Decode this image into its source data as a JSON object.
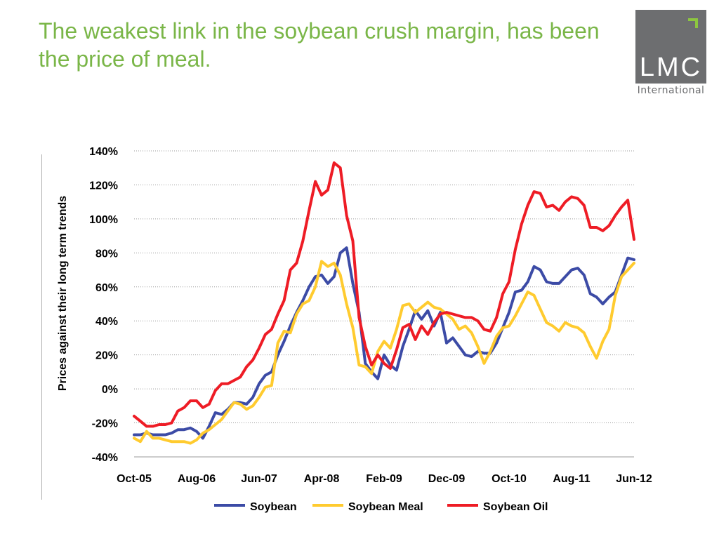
{
  "slide": {
    "title": "The weakest link in the soybean crush margin, has been the price of meal."
  },
  "logo": {
    "main": "LMC",
    "sub": "International"
  },
  "chart_data": {
    "type": "line",
    "title": "",
    "xlabel": "",
    "ylabel": "Prices against their long term trends",
    "ylim": [
      -40,
      140
    ],
    "yticks": [
      -40,
      -20,
      0,
      20,
      40,
      60,
      80,
      100,
      120,
      140
    ],
    "ytick_labels": [
      "-40%",
      "-20%",
      "0%",
      "20%",
      "40%",
      "60%",
      "80%",
      "100%",
      "120%",
      "140%"
    ],
    "xlim": [
      0,
      80
    ],
    "xticks": [
      0,
      10,
      20,
      30,
      40,
      50,
      60,
      70,
      80
    ],
    "xtick_labels": [
      "Oct-05",
      "Aug-06",
      "Jun-07",
      "Apr-08",
      "Feb-09",
      "Dec-09",
      "Oct-10",
      "Aug-11",
      "Jun-12"
    ],
    "grid": true,
    "legend_position": "bottom",
    "series": [
      {
        "name": "Soybean",
        "color": "#3c4ba6",
        "values": [
          -27,
          -27,
          -26,
          -27,
          -27,
          -27,
          -26,
          -24,
          -24,
          -23,
          -25,
          -29,
          -22,
          -14,
          -15,
          -12,
          -8,
          -8,
          -9,
          -5,
          3,
          8,
          10,
          20,
          28,
          37,
          45,
          52,
          60,
          66,
          67,
          62,
          66,
          80,
          83,
          62,
          45,
          15,
          10,
          6,
          20,
          14,
          11,
          25,
          35,
          46,
          41,
          46,
          37,
          45,
          27,
          30,
          25,
          20,
          19,
          22,
          21,
          21,
          27,
          36,
          45,
          57,
          58,
          63,
          72,
          70,
          63,
          62,
          62,
          66,
          70,
          71,
          67,
          56,
          54,
          50,
          54,
          57,
          67,
          77,
          76
        ]
      },
      {
        "name": "Soybean Meal",
        "color": "#ffcb2f",
        "values": [
          -29,
          -31,
          -25,
          -29,
          -29,
          -30,
          -31,
          -31,
          -31,
          -32,
          -30,
          -26,
          -24,
          -21,
          -18,
          -13,
          -8,
          -9,
          -12,
          -10,
          -5,
          1,
          2,
          27,
          34,
          33,
          44,
          50,
          52,
          60,
          75,
          72,
          74,
          67,
          50,
          36,
          14,
          13,
          9,
          22,
          28,
          24,
          35,
          49,
          50,
          45,
          48,
          51,
          48,
          47,
          44,
          41,
          35,
          37,
          33,
          25,
          15,
          22,
          31,
          36,
          37,
          43,
          50,
          57,
          55,
          47,
          39,
          37,
          34,
          39,
          37,
          36,
          33,
          25,
          18,
          28,
          35,
          55,
          66,
          70,
          74
        ]
      },
      {
        "name": "Soybean Oil",
        "color": "#ee1c25",
        "values": [
          -16,
          -19,
          -22,
          -22,
          -21,
          -21,
          -20,
          -13,
          -11,
          -7,
          -7,
          -11,
          -9,
          -1,
          3,
          3,
          5,
          7,
          13,
          17,
          24,
          32,
          35,
          44,
          52,
          70,
          74,
          87,
          105,
          122,
          114,
          117,
          133,
          130,
          102,
          87,
          42,
          25,
          14,
          20,
          15,
          12,
          23,
          36,
          38,
          29,
          37,
          32,
          39,
          44,
          45,
          44,
          43,
          42,
          42,
          40,
          35,
          34,
          42,
          56,
          63,
          82,
          97,
          108,
          116,
          115,
          107,
          108,
          105,
          110,
          113,
          112,
          108,
          95,
          95,
          93,
          96,
          102,
          107,
          111,
          88
        ]
      }
    ]
  }
}
